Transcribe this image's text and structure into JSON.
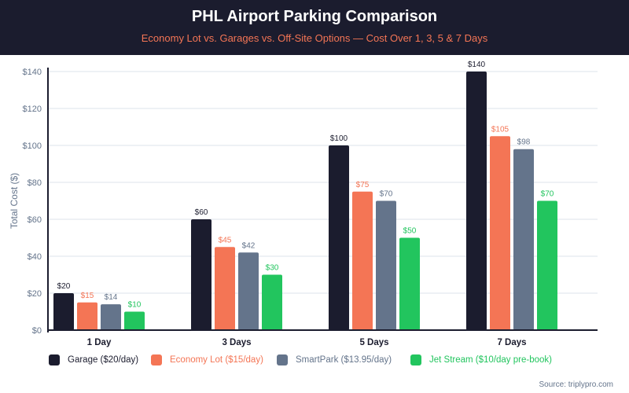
{
  "header": {
    "title": "PHL Airport Parking Comparison",
    "subtitle": "Economy Lot vs. Garages vs. Off-Site Options — Cost Over 1, 3, 5 & 7 Days"
  },
  "chart_data": {
    "type": "bar",
    "title": "PHL Airport Parking Comparison",
    "subtitle": "Economy Lot vs. Garages vs. Off-Site Options — Cost Over 1, 3, 5 & 7 Days",
    "xlabel": "",
    "ylabel": "Total Cost ($)",
    "ylim": [
      0,
      140
    ],
    "yticks": [
      0,
      20,
      40,
      60,
      80,
      100,
      120,
      140
    ],
    "ytick_labels": [
      "$0",
      "$20",
      "$40",
      "$60",
      "$80",
      "$100",
      "$120",
      "$140"
    ],
    "categories": [
      "1 Day",
      "3 Days",
      "5 Days",
      "7 Days"
    ],
    "series": [
      {
        "name": "Garage ($20/day)",
        "color": "#1b1c2e",
        "values": [
          20,
          60,
          100,
          140
        ],
        "labels": [
          "$20",
          "$60",
          "$100",
          "$140"
        ]
      },
      {
        "name": "Economy Lot ($15/day)",
        "color": "#f47555",
        "values": [
          15,
          45,
          75,
          105
        ],
        "labels": [
          "$15",
          "$45",
          "$75",
          "$105"
        ]
      },
      {
        "name": "SmartPark ($13.95/day)",
        "color": "#64748b",
        "values": [
          14,
          42,
          70,
          98
        ],
        "labels": [
          "$14",
          "$42",
          "$70",
          "$98"
        ]
      },
      {
        "name": "Jet Stream ($10/day pre-book)",
        "color": "#22c55e",
        "values": [
          10,
          30,
          50,
          70
        ],
        "labels": [
          "$10",
          "$30",
          "$50",
          "$70"
        ]
      }
    ],
    "grid": true,
    "legend_position": "bottom-left"
  },
  "source": "Source: triplypro.com"
}
